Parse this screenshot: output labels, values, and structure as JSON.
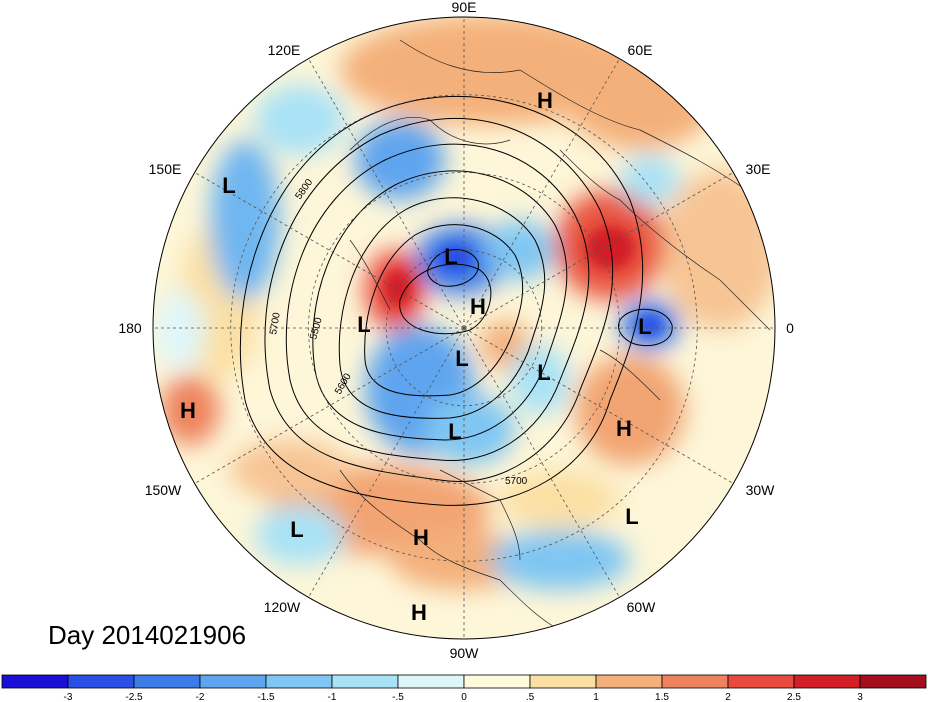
{
  "title": "Day 2014021906",
  "map": {
    "projection": "north polar stereographic",
    "longitude_labels": [
      {
        "text": "90E",
        "lon": 90
      },
      {
        "text": "60E",
        "lon": 60
      },
      {
        "text": "30E",
        "lon": 30
      },
      {
        "text": "0",
        "lon": 0
      },
      {
        "text": "30W",
        "lon": -30
      },
      {
        "text": "60W",
        "lon": -60
      },
      {
        "text": "90W",
        "lon": -90
      },
      {
        "text": "120W",
        "lon": -120
      },
      {
        "text": "150W",
        "lon": -150
      },
      {
        "text": "180",
        "lon": 180
      },
      {
        "text": "150E",
        "lon": 150
      },
      {
        "text": "120E",
        "lon": 120
      }
    ],
    "pressure_centers": [
      {
        "type": "H",
        "label": "H",
        "region": "Siberia"
      },
      {
        "type": "L",
        "label": "L",
        "region": "North Pacific west"
      },
      {
        "type": "L",
        "label": "L",
        "region": "Arctic (Laptev)"
      },
      {
        "type": "H",
        "label": "H",
        "region": "Arctic Ocean"
      },
      {
        "type": "L",
        "label": "L",
        "region": "Bering/Alaska"
      },
      {
        "type": "L",
        "label": "L",
        "region": "Scandinavia/Barents"
      },
      {
        "type": "L",
        "label": "L",
        "region": "Canadian Arctic"
      },
      {
        "type": "L",
        "label": "L",
        "region": "Greenland"
      },
      {
        "type": "L",
        "label": "L",
        "region": "Hudson Bay"
      },
      {
        "type": "H",
        "label": "H",
        "region": "Central Pacific"
      },
      {
        "type": "H",
        "label": "H",
        "region": "North Atlantic"
      },
      {
        "type": "L",
        "label": "L",
        "region": "Subtropical Atlantic"
      },
      {
        "type": "L",
        "label": "L",
        "region": "East Pacific"
      },
      {
        "type": "H",
        "label": "H",
        "region": "Gulf of Mexico"
      },
      {
        "type": "H",
        "label": "H",
        "region": "Eastern Tropical Pacific"
      }
    ],
    "contour_labels": [
      "5800",
      "5700",
      "5500",
      "5600",
      "5700"
    ]
  },
  "colorbar": {
    "ticks": [
      "-3",
      "-2.5",
      "-2",
      "-1.5",
      "-1",
      "-.5",
      "0",
      ".5",
      "1",
      "1.5",
      "2",
      "2.5",
      "3"
    ],
    "colors": [
      "#1a0fd6",
      "#2a4fe6",
      "#3c7ce8",
      "#5ea4ef",
      "#7fc6f3",
      "#a9e2f6",
      "#dff6f9",
      "#fefbdc",
      "#fbe0a4",
      "#f4b07a",
      "#ee825d",
      "#e84a3e",
      "#d21f27",
      "#a40f1d"
    ]
  }
}
